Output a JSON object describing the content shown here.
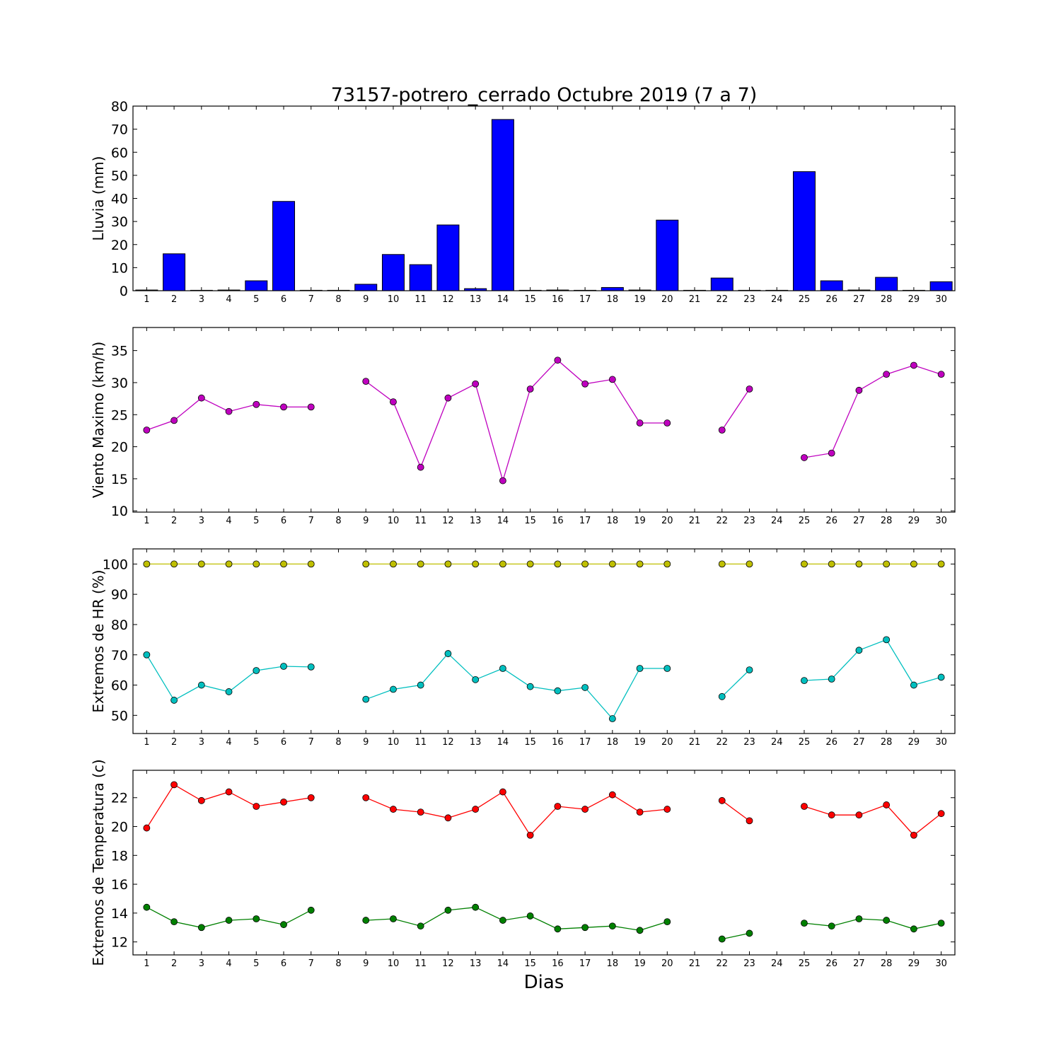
{
  "chart_data": {
    "title": "73157-potrero_cerrado Octubre 2019  (7 a 7)",
    "xlabel": "Dias",
    "days": [
      1,
      2,
      3,
      4,
      5,
      6,
      7,
      8,
      9,
      10,
      11,
      12,
      13,
      14,
      15,
      16,
      17,
      18,
      19,
      20,
      21,
      22,
      23,
      24,
      25,
      26,
      27,
      28,
      29,
      30
    ],
    "panels": [
      {
        "type": "bar",
        "ylabel": "Lluvia (mm)",
        "ylim": [
          0,
          80
        ],
        "yticks": [
          0,
          10,
          20,
          30,
          40,
          50,
          60,
          70,
          80
        ],
        "series": [
          {
            "color": "#0000ff",
            "values": [
              0.3,
              16.0,
              0,
              0.3,
              4.3,
              38.7,
              0,
              0,
              2.8,
              15.7,
              11.3,
              28.5,
              0.9,
              74.2,
              0,
              0.3,
              0,
              1.4,
              0.3,
              30.6,
              0,
              5.5,
              0,
              0,
              51.6,
              4.3,
              0.3,
              5.8,
              0,
              3.9
            ]
          }
        ]
      },
      {
        "type": "line",
        "ylabel": "Viento Maximo (km/h)",
        "ylim": [
          9.8,
          38.6
        ],
        "yticks": [
          10,
          15,
          20,
          25,
          30,
          35
        ],
        "series": [
          {
            "color": "#bf00bf",
            "values": [
              22.6,
              24.1,
              27.6,
              25.5,
              26.6,
              26.2,
              26.2,
              null,
              30.2,
              27.0,
              16.8,
              27.6,
              29.8,
              14.7,
              29.0,
              33.5,
              29.8,
              30.5,
              23.7,
              23.7,
              null,
              22.6,
              29.0,
              null,
              18.3,
              19.0,
              28.8,
              31.3,
              32.7,
              31.3
            ]
          }
        ]
      },
      {
        "type": "line",
        "ylabel": "Extremos de HR (%)",
        "ylim": [
          44,
          105
        ],
        "yticks": [
          50,
          60,
          70,
          80,
          90,
          100
        ],
        "series": [
          {
            "color": "#bfbf00",
            "values": [
              100,
              100,
              100,
              100,
              100,
              100,
              100,
              null,
              100,
              100,
              100,
              100,
              100,
              100,
              100,
              100,
              100,
              100,
              100,
              100,
              null,
              100,
              100,
              null,
              100,
              100,
              100,
              100,
              100,
              100
            ]
          },
          {
            "color": "#00bfbf",
            "values": [
              70.0,
              55.0,
              60.0,
              57.8,
              64.8,
              66.2,
              66.0,
              null,
              55.3,
              58.6,
              60.0,
              70.4,
              61.8,
              65.5,
              59.5,
              58.1,
              59.2,
              48.9,
              65.5,
              65.5,
              null,
              56.2,
              65.0,
              null,
              61.5,
              62.0,
              71.5,
              75.0,
              60.0,
              62.6
            ]
          }
        ]
      },
      {
        "type": "line",
        "ylabel": "Extremos de Temperatura (c)",
        "ylim": [
          11.1,
          23.9
        ],
        "yticks": [
          12,
          14,
          16,
          18,
          20,
          22
        ],
        "series": [
          {
            "color": "#ff0000",
            "values": [
              19.9,
              22.9,
              21.8,
              22.4,
              21.4,
              21.7,
              22.0,
              null,
              22.0,
              21.2,
              21.0,
              20.6,
              21.2,
              22.4,
              19.4,
              21.4,
              21.2,
              22.2,
              21.0,
              21.2,
              null,
              21.8,
              20.4,
              null,
              21.4,
              20.8,
              20.8,
              21.5,
              19.4,
              20.9
            ]
          },
          {
            "color": "#008000",
            "values": [
              14.4,
              13.4,
              13.0,
              13.5,
              13.6,
              13.2,
              14.2,
              null,
              13.5,
              13.6,
              13.1,
              14.2,
              14.4,
              13.5,
              13.8,
              12.9,
              13.0,
              13.1,
              12.8,
              13.4,
              null,
              12.2,
              12.6,
              null,
              13.3,
              13.1,
              13.6,
              13.5,
              12.9,
              13.3
            ]
          }
        ]
      }
    ]
  }
}
